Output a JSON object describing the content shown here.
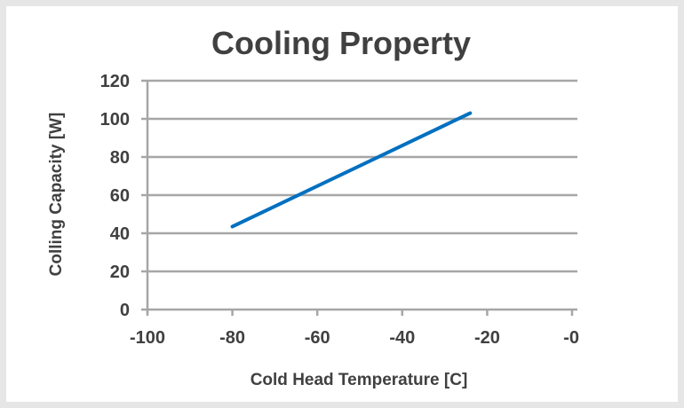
{
  "chart_data": {
    "type": "line",
    "title": "Cooling Property",
    "xlabel": "Cold Head Temperature [C]",
    "ylabel": "Colling Capacity [W]",
    "xlim": [
      -100,
      0
    ],
    "ylim": [
      0,
      120
    ],
    "x_ticks": [
      "-100",
      "-80",
      "-60",
      "-40",
      "-20",
      "-0"
    ],
    "y_ticks": [
      "0",
      "20",
      "40",
      "60",
      "80",
      "100",
      "120"
    ],
    "grid": "horizontal",
    "legend": "none",
    "series": [
      {
        "x": [
          -80,
          -24
        ],
        "y": [
          43.5,
          103
        ],
        "color": "#0070c0"
      }
    ]
  }
}
